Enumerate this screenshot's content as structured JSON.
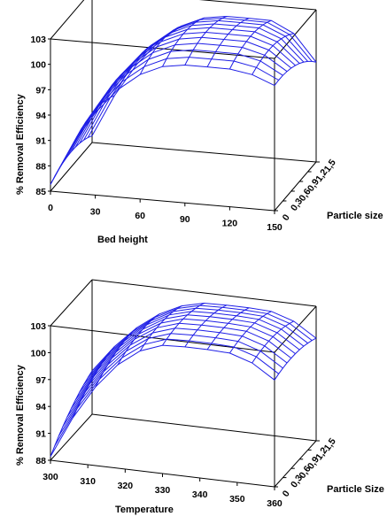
{
  "chart_data": [
    {
      "type": "surface",
      "title": "",
      "xlabel": "Bed height",
      "ylabel": "Particle size",
      "zlabel": "% Removal Efficiency",
      "x_ticks": [
        "0",
        "30",
        "60",
        "90",
        "120",
        "150"
      ],
      "y_ticks": [
        "0",
        "0,3",
        "0,6",
        "0,9",
        "1,2",
        "1,5"
      ],
      "z_ticks": [
        "85",
        "88",
        "91",
        "94",
        "97",
        "100",
        "103"
      ],
      "xlim": [
        0,
        150
      ],
      "ylim": [
        0,
        1.5
      ],
      "zlim": [
        85,
        103
      ],
      "x": [
        0,
        15,
        30,
        45,
        60,
        75,
        90,
        105,
        120,
        135,
        150
      ],
      "y": [
        0,
        0.15,
        0.3,
        0.45,
        0.6,
        0.75,
        0.9,
        1.05,
        1.2,
        1.35,
        1.5
      ],
      "color": "#1e1ee6"
    },
    {
      "type": "surface",
      "title": "",
      "xlabel": "Temperature",
      "ylabel": "Particle Size",
      "zlabel": "% Removal Efficiency",
      "x_ticks": [
        "300",
        "310",
        "320",
        "330",
        "340",
        "350",
        "360"
      ],
      "y_ticks": [
        "0",
        "0,3",
        "0,6",
        "0,9",
        "1,2",
        "1,5"
      ],
      "z_ticks": [
        "88",
        "91",
        "94",
        "97",
        "100",
        "103"
      ],
      "xlim": [
        300,
        360
      ],
      "ylim": [
        0,
        1.5
      ],
      "zlim": [
        88,
        103
      ],
      "x": [
        300,
        306,
        312,
        318,
        324,
        330,
        336,
        342,
        348,
        354,
        360
      ],
      "y": [
        0,
        0.15,
        0.3,
        0.45,
        0.6,
        0.75,
        0.9,
        1.05,
        1.2,
        1.35,
        1.5
      ],
      "color": "#1e1ee6"
    }
  ]
}
